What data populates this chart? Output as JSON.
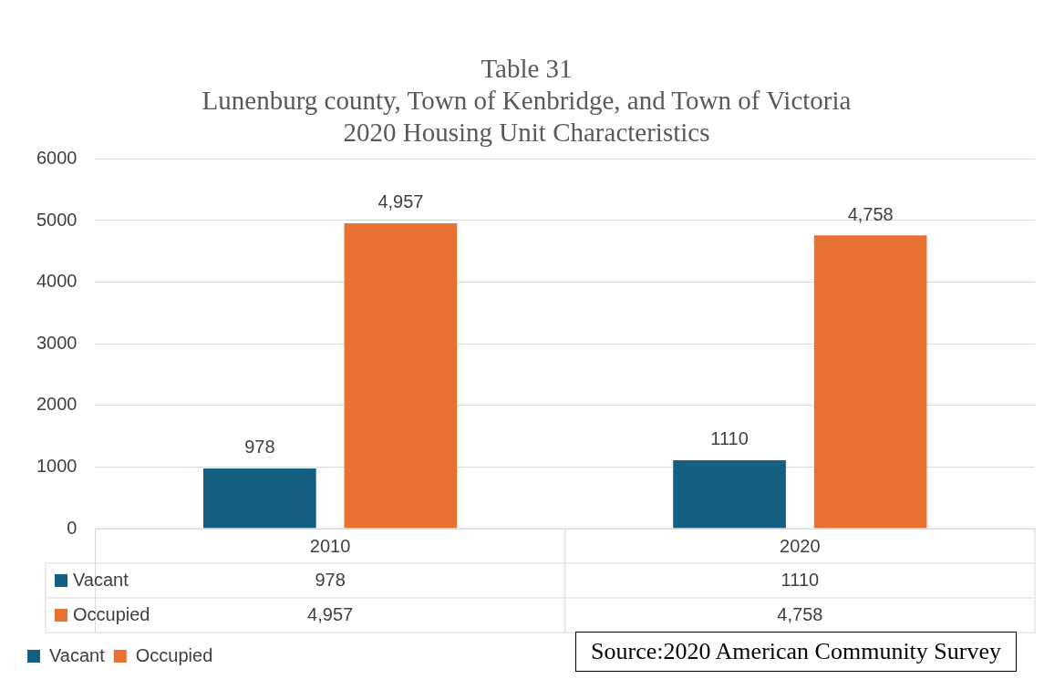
{
  "chart_data": {
    "type": "bar",
    "title": "Table 31",
    "subtitle": "Lunenburg county, Town of Kenbridge, and Town of Victoria\n2020 Housing Unit Characteristics",
    "categories": [
      "2010",
      "2020"
    ],
    "series": [
      {
        "name": "Vacant",
        "color": "#156082",
        "values": [
          978,
          1110
        ],
        "value_labels": [
          "978",
          "1110"
        ]
      },
      {
        "name": "Occupied",
        "color": "#e97132",
        "values": [
          4957,
          4758
        ],
        "value_labels": [
          "4,957",
          "4,758"
        ]
      }
    ],
    "ylim": [
      0,
      6000
    ],
    "yticks": [
      0,
      1000,
      2000,
      3000,
      4000,
      5000,
      6000
    ],
    "grid": "y",
    "legend": "bottom left",
    "annotations": [
      "Source:2020 American Community Survey"
    ]
  }
}
